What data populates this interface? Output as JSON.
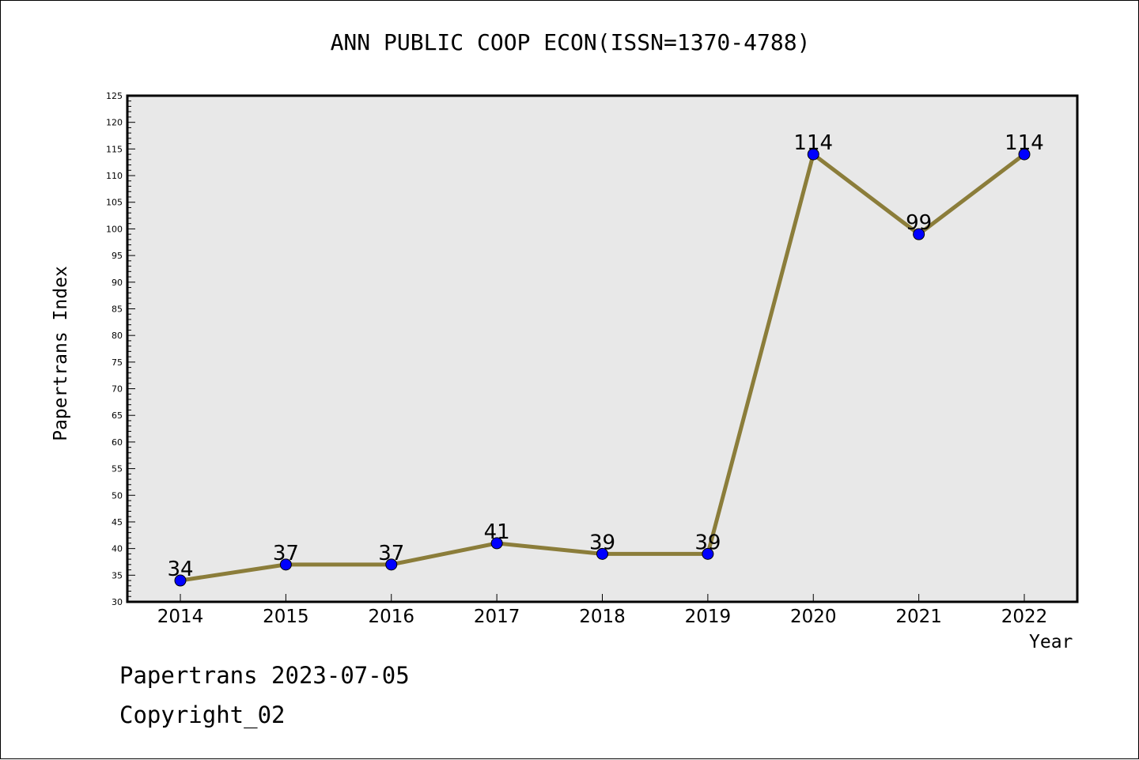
{
  "chart_data": {
    "type": "line",
    "title": "ANN PUBLIC COOP ECON(ISSN=1370-4788)",
    "xlabel": "Year",
    "ylabel": "Papertrans Index",
    "categories": [
      "2014",
      "2015",
      "2016",
      "2017",
      "2018",
      "2019",
      "2020",
      "2021",
      "2022"
    ],
    "series": [
      {
        "values": [
          34,
          37,
          37,
          41,
          39,
          39,
          114,
          99,
          114
        ]
      }
    ],
    "data_labels": [
      "34",
      "37",
      "37",
      "41",
      "39",
      "39",
      "114",
      "99",
      "114"
    ],
    "ylim": [
      30,
      125
    ],
    "y_ticks": [
      "30",
      "35",
      "40",
      "45",
      "50",
      "55",
      "60",
      "65",
      "70",
      "75",
      "80",
      "85",
      "90",
      "95",
      "100",
      "105",
      "110",
      "115",
      "120",
      "125"
    ],
    "grid": false,
    "colors": {
      "line": "#8B7D3A",
      "marker": "#0000FF",
      "plot_background": "#E8E8E8"
    }
  },
  "footer": {
    "line1": "Papertrans 2023-07-05",
    "line2": "Copyright_02"
  }
}
